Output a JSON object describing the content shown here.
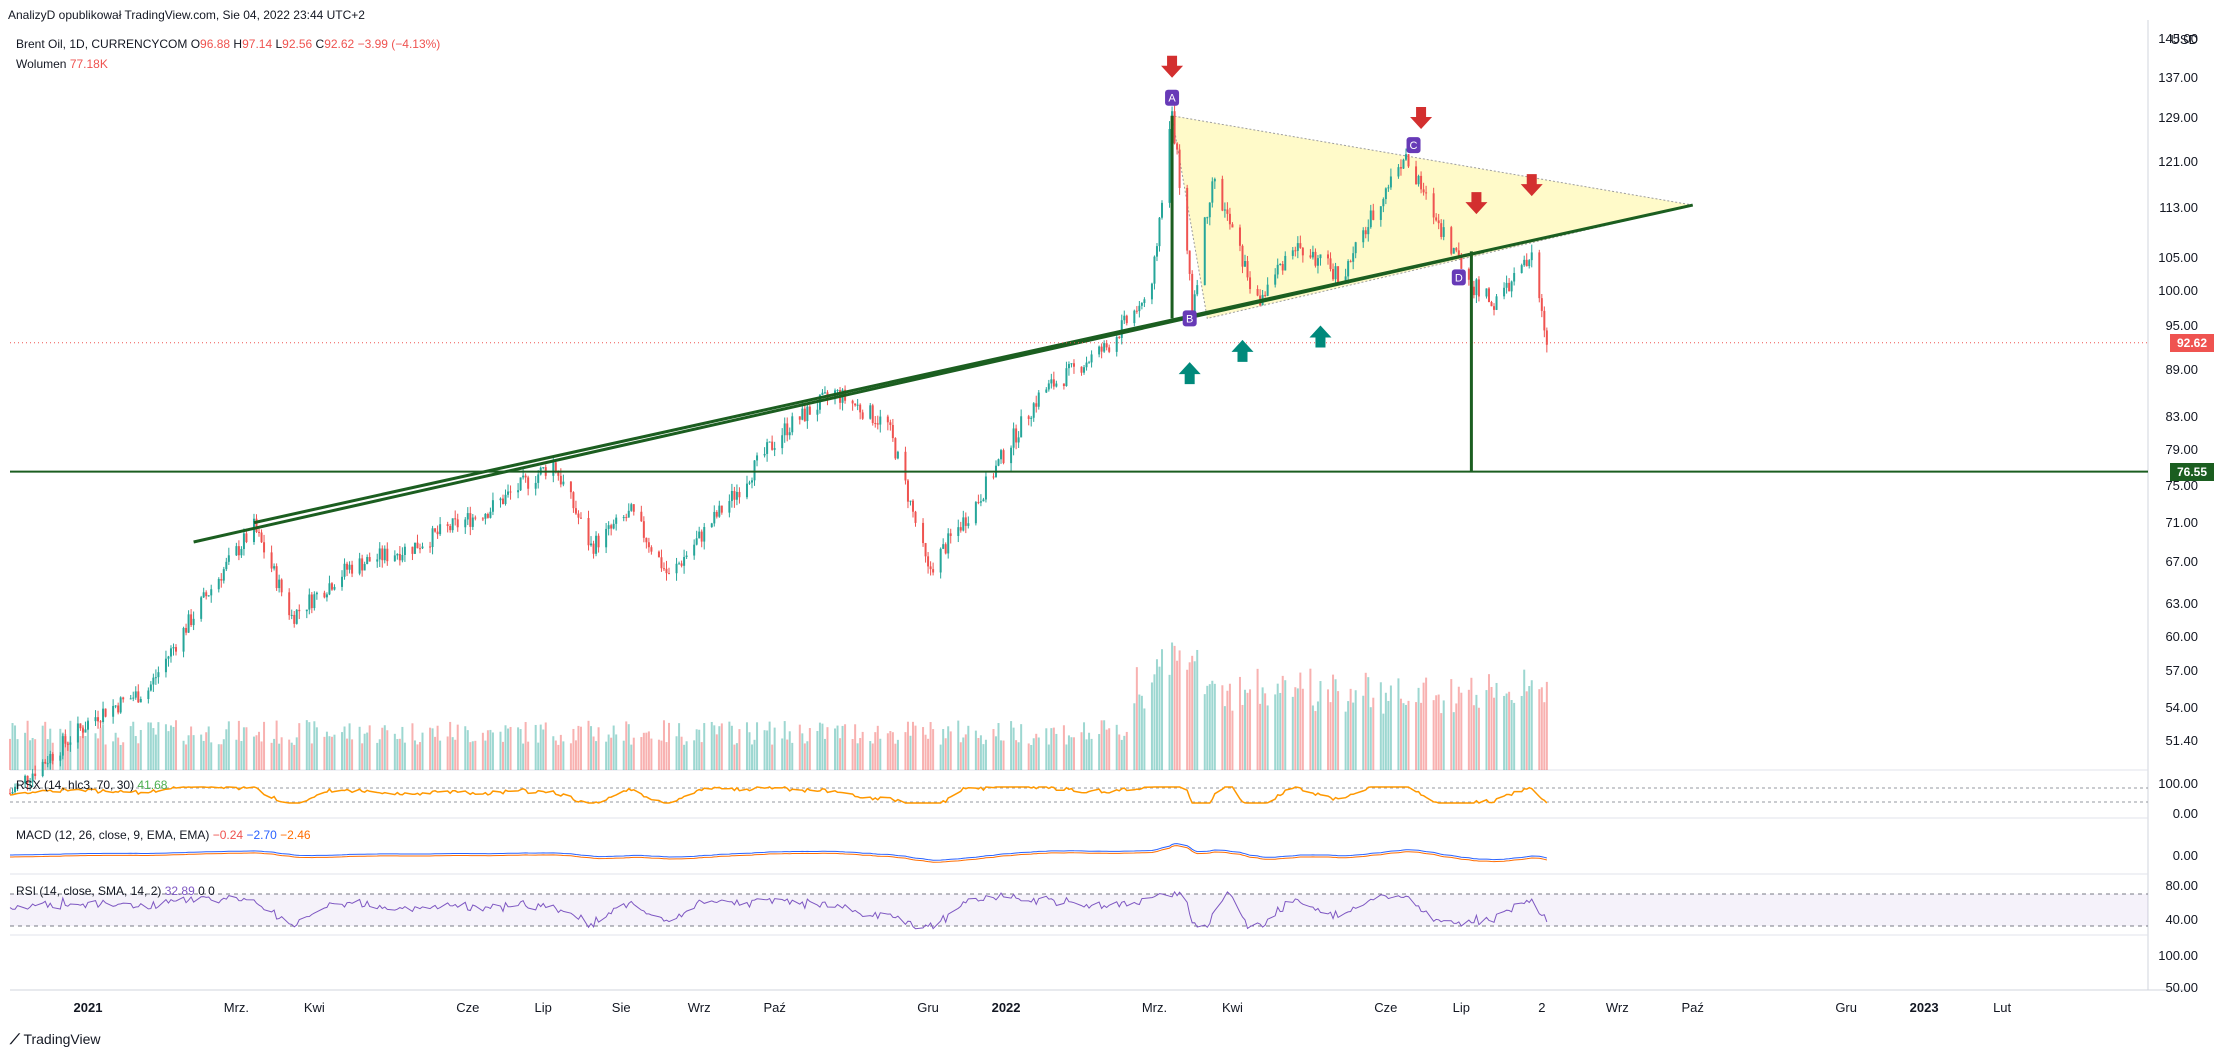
{
  "header": {
    "published_line": "AnalizyD opublikował TradingView.com, Sie 04, 2022 23:44 UTC+2",
    "symbol_line": "Brent Oil, 1D, CURRENCYCOM",
    "o_label": "O",
    "o_value": "96.88",
    "h_label": "H",
    "h_value": "97.14",
    "l_label": "L",
    "l_value": "92.56",
    "c_label": "C",
    "c_value": "92.62",
    "change": "−3.99 (−4.13%)",
    "volume_label": "Wolumen",
    "volume_value": "77.18K"
  },
  "indicators": {
    "rsx_label": "RSX (14, hlc3, 70, 30)",
    "rsx_value": "41.68",
    "macd_label": "MACD (12, 26, close, 9, EMA, EMA)",
    "macd_v1": "−0.24",
    "macd_v2": "−2.70",
    "macd_v3": "−2.46",
    "rsi_label": "RSI (14, close, SMA, 14, 2)",
    "rsi_v1": "32.89",
    "rsi_v2": "0",
    "rsi_v3": "0"
  },
  "price_axis": {
    "currency": "USD",
    "ticks": [
      "145.00",
      "137.00",
      "129.00",
      "121.00",
      "113.00",
      "105.00",
      "100.00",
      "95.00",
      "89.00",
      "83.00",
      "79.00",
      "75.00",
      "71.00",
      "67.00",
      "63.00",
      "60.00",
      "57.00",
      "54.00",
      "51.40"
    ],
    "last_price": "92.62",
    "level_price": "76.55",
    "rsx_ticks": [
      "100.00",
      "0.00"
    ],
    "macd_ticks": [
      "0.00"
    ],
    "rsi_ticks": [
      "80.00",
      "40.00",
      "100.00",
      "50.00"
    ]
  },
  "time_axis": {
    "labels": [
      {
        "text": "2021",
        "bold": true
      },
      {
        "text": "Mrz.",
        "bold": false
      },
      {
        "text": "Kwi",
        "bold": false
      },
      {
        "text": "Cze",
        "bold": false
      },
      {
        "text": "Lip",
        "bold": false
      },
      {
        "text": "Sie",
        "bold": false
      },
      {
        "text": "Wrz",
        "bold": false
      },
      {
        "text": "Paź",
        "bold": false
      },
      {
        "text": "Gru",
        "bold": false
      },
      {
        "text": "2022",
        "bold": true
      },
      {
        "text": "Mrz.",
        "bold": false
      },
      {
        "text": "Kwi",
        "bold": false
      },
      {
        "text": "Cze",
        "bold": false
      },
      {
        "text": "Lip",
        "bold": false
      },
      {
        "text": "2",
        "bold": false
      },
      {
        "text": "Wrz",
        "bold": false
      },
      {
        "text": "Paź",
        "bold": false
      },
      {
        "text": "Gru",
        "bold": false
      },
      {
        "text": "2023",
        "bold": true
      },
      {
        "text": "Lut",
        "bold": false
      }
    ]
  },
  "annotations": {
    "pattern_labels": [
      "A",
      "B",
      "C",
      "D"
    ]
  },
  "footer": {
    "logo_text": "TradingView"
  },
  "colors": {
    "up": "#26a69a",
    "down": "#ef5350",
    "trendline": "#1b5e20",
    "triangle_fill": "#fff59d",
    "label_purple": "#673ab7",
    "arrow_red": "#d32f2f",
    "arrow_green": "#00897b"
  },
  "chart_data": {
    "type": "candlestick",
    "title": "Brent Oil, 1D, CURRENCYCOM",
    "ylabel": "USD",
    "ylim": [
      50,
      147
    ],
    "x_range": [
      "2020-12-01",
      "2023-03-31"
    ],
    "price_path": [
      {
        "date": "2020-12-01",
        "close": 47.6
      },
      {
        "date": "2021-01-05",
        "close": 53.5
      },
      {
        "date": "2021-01-25",
        "close": 55.5
      },
      {
        "date": "2021-02-15",
        "close": 63.0
      },
      {
        "date": "2021-03-08",
        "close": 70.5
      },
      {
        "date": "2021-03-23",
        "close": 61.8
      },
      {
        "date": "2021-04-15",
        "close": 66.5
      },
      {
        "date": "2021-05-10",
        "close": 68.5
      },
      {
        "date": "2021-06-10",
        "close": 72.5
      },
      {
        "date": "2021-07-05",
        "close": 77.5
      },
      {
        "date": "2021-07-20",
        "close": 68.5
      },
      {
        "date": "2021-08-05",
        "close": 72.0
      },
      {
        "date": "2021-08-20",
        "close": 65.5
      },
      {
        "date": "2021-09-15",
        "close": 74.0
      },
      {
        "date": "2021-10-05",
        "close": 81.5
      },
      {
        "date": "2021-10-25",
        "close": 86.0
      },
      {
        "date": "2021-11-15",
        "close": 82.0
      },
      {
        "date": "2021-12-01",
        "close": 66.0
      },
      {
        "date": "2021-12-20",
        "close": 73.0
      },
      {
        "date": "2022-01-15",
        "close": 86.0
      },
      {
        "date": "2022-02-10",
        "close": 92.0
      },
      {
        "date": "2022-02-28",
        "close": 100.0
      },
      {
        "date": "2022-03-08",
        "close": 130.0
      },
      {
        "date": "2022-03-16",
        "close": 97.0
      },
      {
        "date": "2022-03-24",
        "close": 118.0
      },
      {
        "date": "2022-04-11",
        "close": 98.0
      },
      {
        "date": "2022-04-25",
        "close": 107.0
      },
      {
        "date": "2022-05-15",
        "close": 102.0
      },
      {
        "date": "2022-06-08",
        "close": 122.0
      },
      {
        "date": "2022-06-20",
        "close": 112.0
      },
      {
        "date": "2022-07-05",
        "close": 101.0
      },
      {
        "date": "2022-07-14",
        "close": 98.0
      },
      {
        "date": "2022-07-29",
        "close": 105.0
      },
      {
        "date": "2022-08-04",
        "close": 92.62
      }
    ],
    "horizontal_levels": [
      76.55
    ],
    "trendlines": [
      {
        "from": {
          "date": "2021-02-12",
          "price": 69.0
        },
        "to": {
          "date": "2022-07-10",
          "price": 106.0
        }
      },
      {
        "from": {
          "date": "2021-03-08",
          "price": 71.0
        },
        "to": {
          "date": "2022-10-01",
          "price": 113.5
        }
      }
    ],
    "triangle": [
      {
        "date": "2022-03-08",
        "price": 129.5
      },
      {
        "date": "2022-03-22",
        "price": 96.0
      },
      {
        "date": "2022-10-01",
        "price": 113.5
      }
    ],
    "volume_pane": {
      "label": "Wolumen",
      "last": "77.18K"
    },
    "rsx": {
      "params": "14, hlc3, 70, 30",
      "last": 41.68,
      "range": [
        0,
        100
      ]
    },
    "macd": {
      "params": "12, 26, close, 9, EMA, EMA",
      "macd": -2.7,
      "signal": -2.46,
      "histogram": -0.24
    },
    "rsi": {
      "params": "14, close, SMA, 14, 2",
      "last": 32.89
    }
  }
}
